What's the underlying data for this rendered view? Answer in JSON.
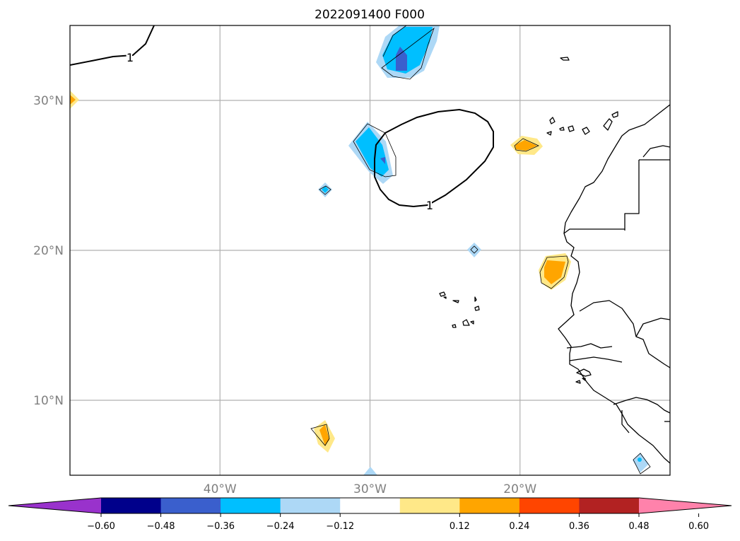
{
  "title": "2022091400 F000",
  "map": {
    "lon_range": [
      -50,
      -10
    ],
    "lat_range": [
      5,
      35
    ],
    "lon_ticks": [
      {
        "lon": -40,
        "label": "40°W"
      },
      {
        "lon": -30,
        "label": "30°W"
      },
      {
        "lon": -20,
        "label": "20°W"
      }
    ],
    "lat_ticks": [
      {
        "lat": 30,
        "label": "30°N"
      },
      {
        "lat": 20,
        "label": "20°N"
      },
      {
        "lat": 10,
        "label": "10°N"
      }
    ],
    "contour_label": "1"
  },
  "colorbar": {
    "colors": [
      "#9932cc",
      "#00008b",
      "#3a5fcd",
      "#00bfff",
      "#add8f6",
      "#ffffff",
      "#ffe888",
      "#ffa500",
      "#ff4500",
      "#b22222",
      "#ff82ab"
    ],
    "ticks": [
      "−0.60",
      "−0.48",
      "−0.36",
      "−0.24",
      "−0.12",
      "0.12",
      "0.24",
      "0.36",
      "0.48",
      "0.60"
    ]
  },
  "colors": {
    "light_blue": "#add8f6",
    "blue": "#00bfff",
    "dark_blue": "#3a5fcd",
    "light_yellow": "#ffe888",
    "orange": "#ffa500"
  }
}
